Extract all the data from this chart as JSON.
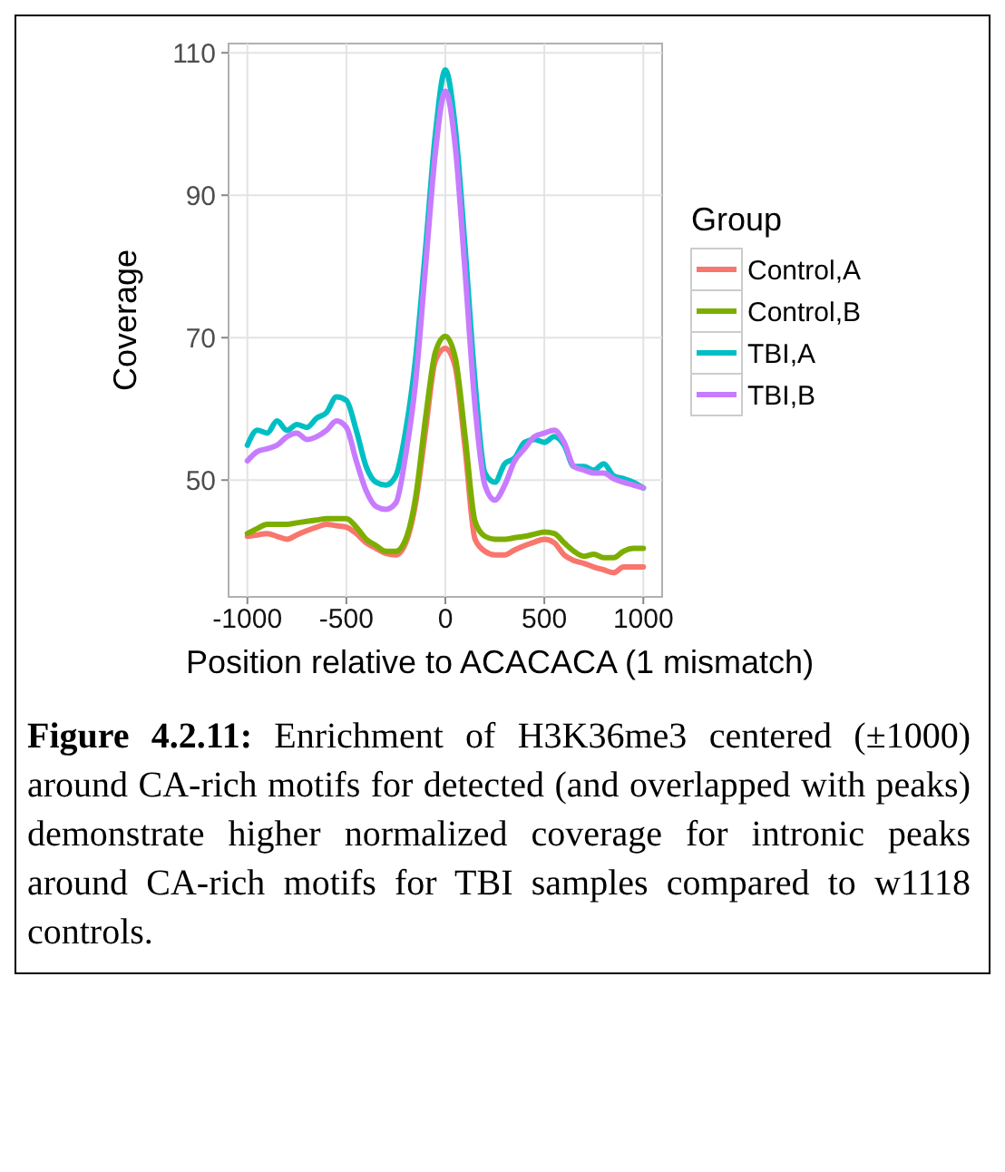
{
  "chart_data": {
    "type": "line",
    "xlabel": "Position relative to ACACACA (1 mismatch)",
    "ylabel": "Coverage",
    "legend_title": "Group",
    "legend": "right",
    "grid": true,
    "xlim": [
      -1095,
      1095
    ],
    "ylim": [
      33.6,
      111.3
    ],
    "xticks": [
      -1000,
      -500,
      0,
      500,
      1000
    ],
    "yticks": [
      50,
      70,
      90,
      110
    ],
    "x": [
      -1000,
      -950,
      -900,
      -850,
      -800,
      -750,
      -700,
      -650,
      -600,
      -550,
      -500,
      -450,
      -400,
      -350,
      -300,
      -250,
      -200,
      -150,
      -100,
      -50,
      0,
      50,
      100,
      150,
      200,
      250,
      300,
      350,
      400,
      450,
      500,
      550,
      600,
      650,
      700,
      750,
      800,
      850,
      900,
      950,
      1000
    ],
    "series": [
      {
        "name": "Control,A",
        "color": "#f8766d",
        "values": [
          42.1,
          42.3,
          42.5,
          42.1,
          41.7,
          42.3,
          42.9,
          43.4,
          43.8,
          43.6,
          43.4,
          42.5,
          41.2,
          40.4,
          39.7,
          39.5,
          41.2,
          46.8,
          57,
          66.8,
          68.5,
          65.9,
          54.4,
          41.7,
          40,
          39.5,
          39.5,
          40.2,
          40.8,
          41.3,
          41.7,
          41.2,
          39.5,
          38.7,
          38.3,
          37.8,
          37.4,
          37,
          37.8,
          37.8,
          37.8
        ]
      },
      {
        "name": "Control,B",
        "color": "#7cae00",
        "values": [
          42.5,
          43.2,
          43.8,
          43.8,
          43.8,
          44,
          44.2,
          44.4,
          44.6,
          44.6,
          44.6,
          43.4,
          41.7,
          40.8,
          40,
          40,
          41.7,
          47.6,
          58.7,
          68,
          70.2,
          67.2,
          56.1,
          44.2,
          42.1,
          41.7,
          41.7,
          41.9,
          42.1,
          42.4,
          42.7,
          42.5,
          41.2,
          40,
          39.3,
          39.6,
          39.1,
          39.1,
          40,
          40.4,
          40.4
        ]
      },
      {
        "name": "TBI,A",
        "color": "#00bfc4",
        "values": [
          54.9,
          57,
          56.6,
          58.3,
          57,
          57.8,
          57.4,
          58.7,
          59.5,
          61.7,
          61.2,
          57,
          51.9,
          49.7,
          49.3,
          50.6,
          57,
          67.2,
          82.5,
          98.7,
          107.6,
          99.5,
          82.5,
          63.8,
          51,
          49.7,
          52.3,
          53.1,
          55.3,
          55.7,
          55.3,
          56.1,
          54.9,
          51.9,
          51.9,
          51.4,
          52.3,
          50.6,
          50.2,
          49.7,
          48.9
        ]
      },
      {
        "name": "TBI,B",
        "color": "#c77cff",
        "values": [
          52.7,
          54,
          54.4,
          54.9,
          56.1,
          56.6,
          55.7,
          56.1,
          57,
          58.3,
          57.4,
          52.7,
          48.5,
          46.3,
          45.9,
          46.8,
          53.6,
          63.8,
          80,
          96.1,
          104.6,
          96.9,
          79.1,
          60.4,
          49.3,
          47.2,
          49.3,
          52.7,
          54.4,
          56.1,
          56.6,
          57,
          55.3,
          51.9,
          51.4,
          51,
          51,
          50.2,
          49.7,
          49.3,
          48.9
        ]
      }
    ],
    "annotations": [
      "Figure 4.2.11: Enrichment of H3K36me3 centered (±1000) around CA-rich motifs for detected (and overlapped with peaks) demonstrate higher normalized coverage for intronic peaks around CA-rich motifs for TBI samples compared to w1118 controls."
    ]
  }
}
